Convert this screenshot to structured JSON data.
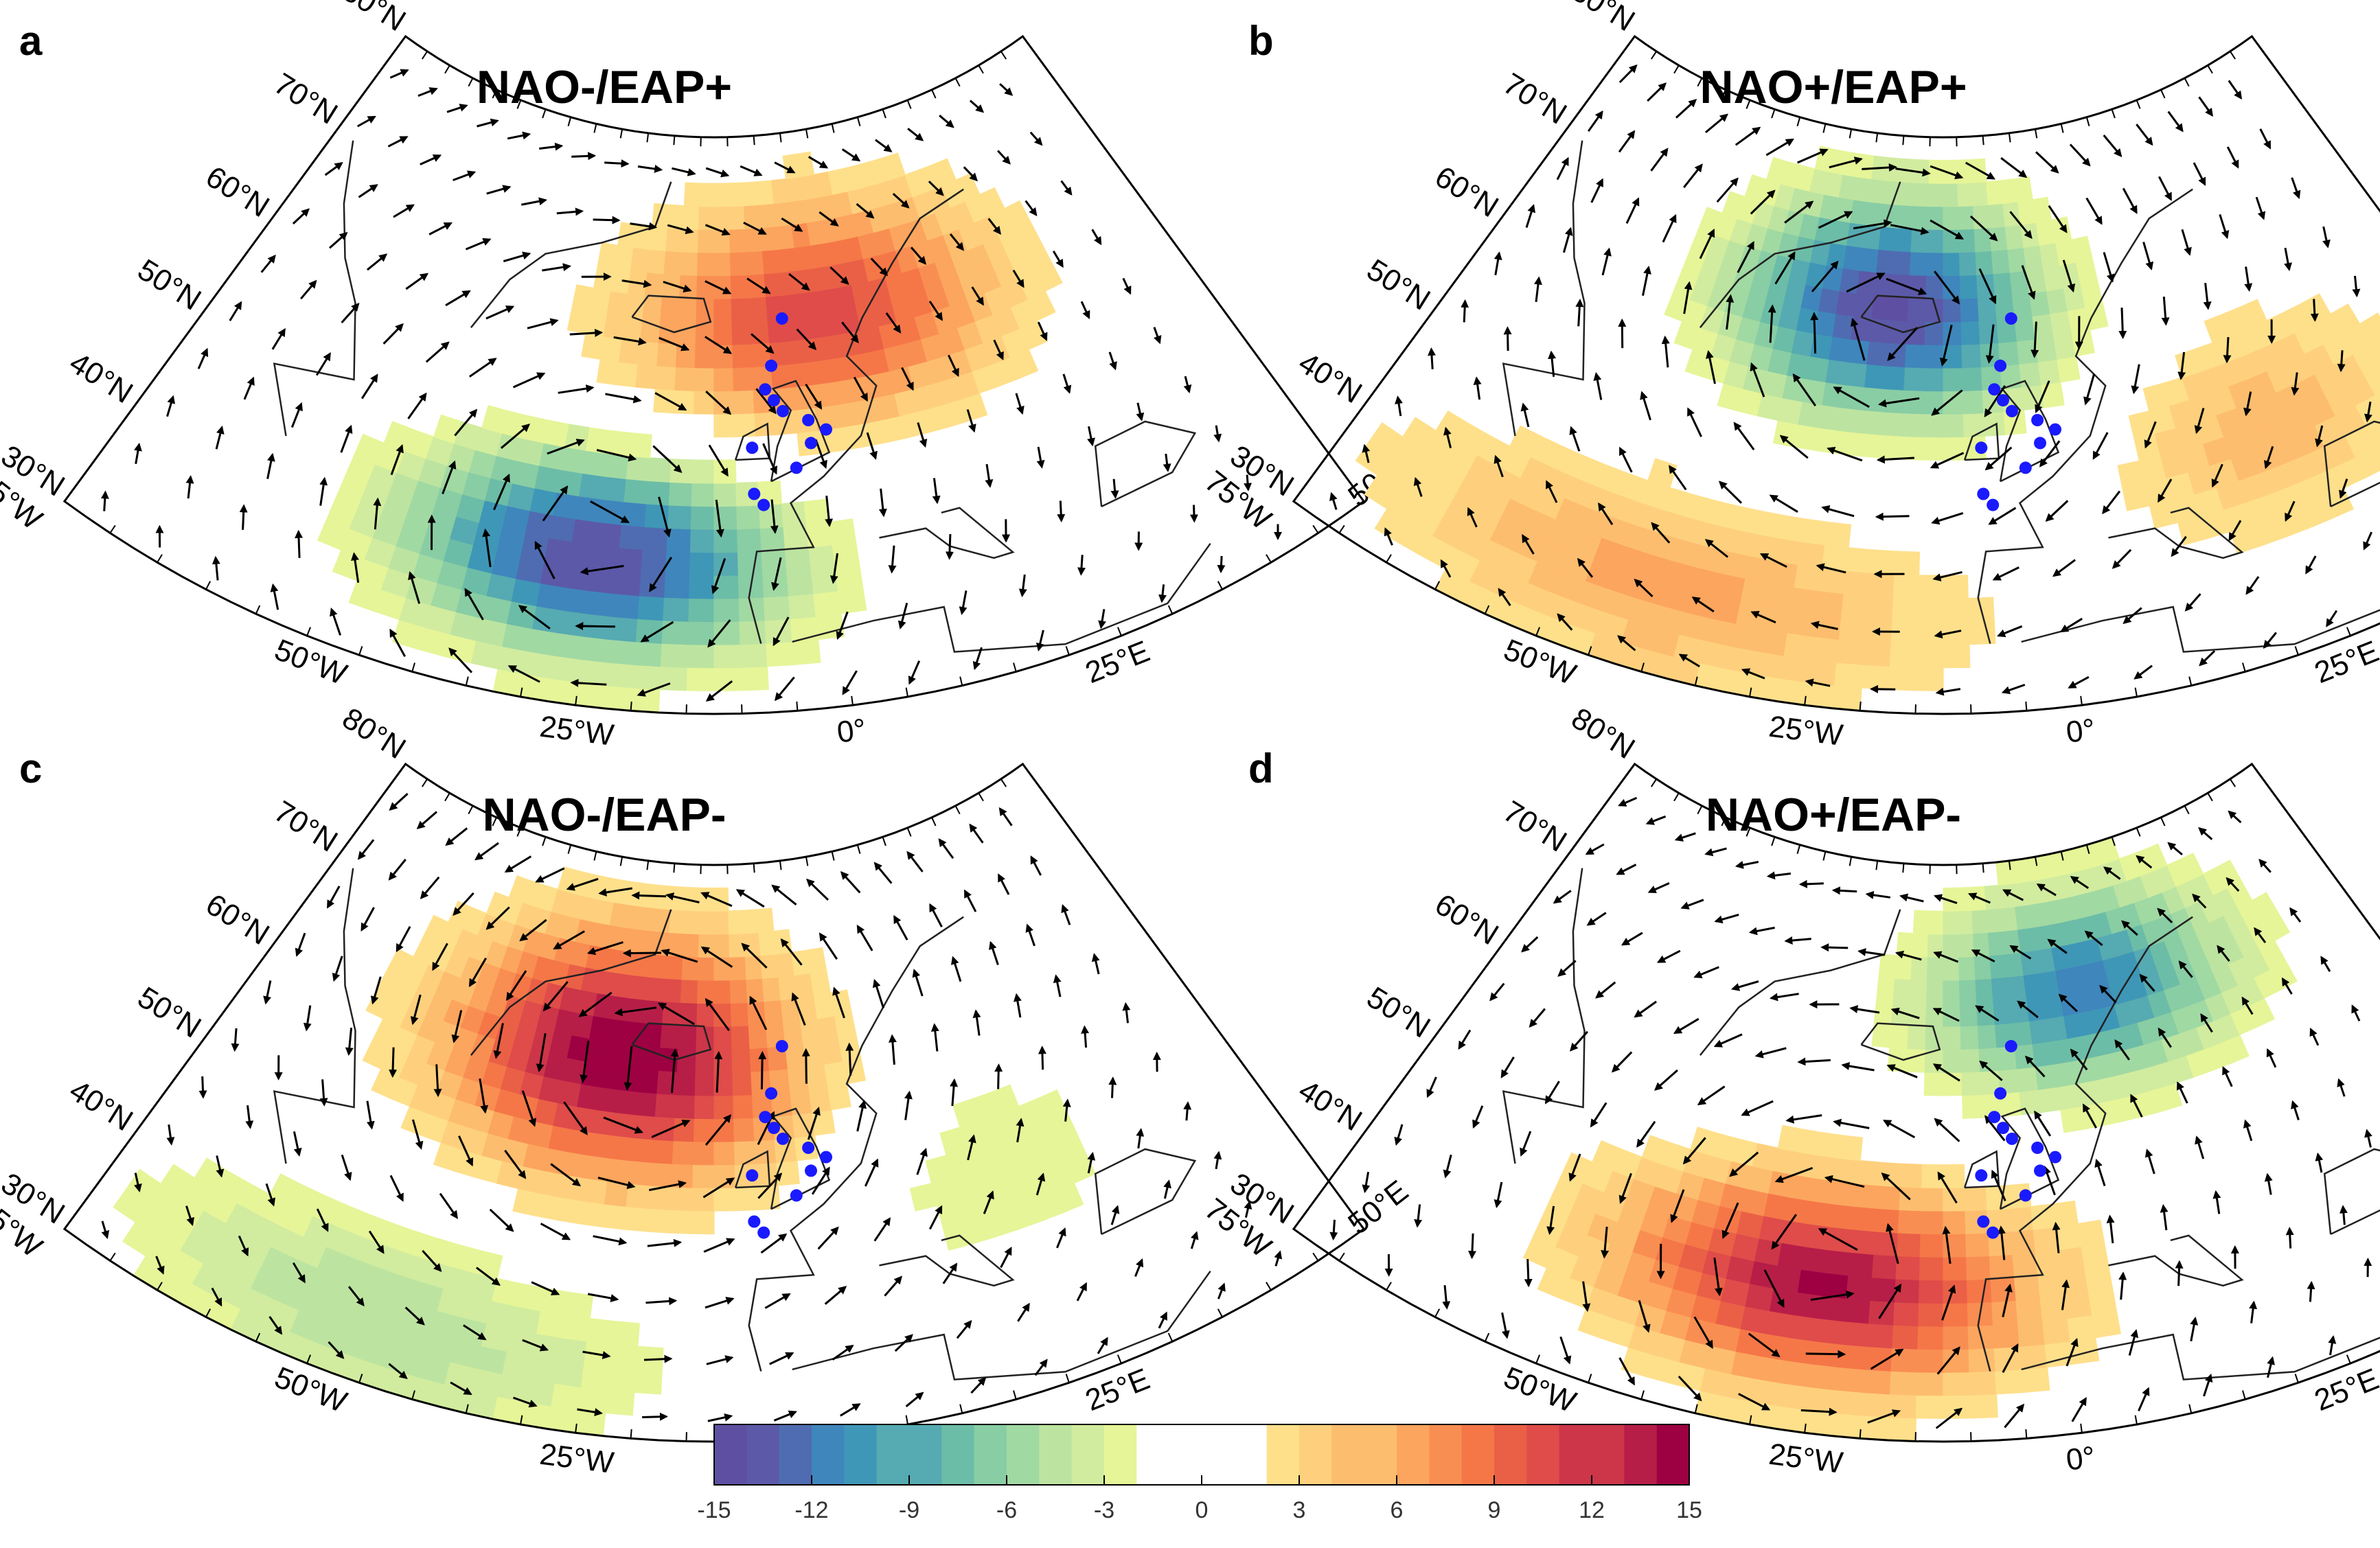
{
  "figure": {
    "panels": [
      {
        "letter": "a",
        "title": "NAO-/EAP+",
        "anomalies": [
          {
            "lon": 2,
            "lat": 64,
            "value": 11,
            "sx": 26,
            "sy": 10
          },
          {
            "lon": -25,
            "lat": 43,
            "value": -14,
            "sx": 20,
            "sy": 9
          }
        ],
        "circulation_center": {
          "lon": -25,
          "lat": 45,
          "sense": "cyclonic"
        }
      },
      {
        "letter": "b",
        "title": "NAO+/EAP+",
        "anomalies": [
          {
            "lon": -20,
            "lat": 65,
            "value": -14,
            "sx": 22,
            "sy": 10
          },
          {
            "lon": -40,
            "lat": 38,
            "value": 6,
            "sx": 30,
            "sy": 9
          },
          {
            "lon": 25,
            "lat": 50,
            "value": 5,
            "sx": 18,
            "sy": 10
          }
        ],
        "circulation_center": {
          "lon": -20,
          "lat": 63,
          "sense": "cyclonic"
        }
      },
      {
        "letter": "c",
        "title": "NAO-/EAP-",
        "anomalies": [
          {
            "lon": -25,
            "lat": 63,
            "value": 15,
            "sx": 24,
            "sy": 11
          },
          {
            "lon": -45,
            "lat": 36,
            "value": -5,
            "sx": 28,
            "sy": 9
          },
          {
            "lon": 20,
            "lat": 50,
            "value": -3,
            "sx": 18,
            "sy": 10
          }
        ],
        "circulation_center": {
          "lon": -22,
          "lat": 62,
          "sense": "anticyclonic"
        }
      },
      {
        "letter": "d",
        "title": "NAO+/EAP-",
        "anomalies": [
          {
            "lon": 8,
            "lat": 68,
            "value": -11,
            "sx": 24,
            "sy": 9
          },
          {
            "lon": -25,
            "lat": 43,
            "value": 14,
            "sx": 22,
            "sy": 9
          }
        ],
        "circulation_center": {
          "lon": -25,
          "lat": 45,
          "sense": "anticyclonic"
        }
      }
    ],
    "lat_labels": [
      "30°N",
      "40°N",
      "50°N",
      "60°N",
      "70°N",
      "80°N"
    ],
    "lon_labels": [
      "75°W",
      "50°W",
      "25°W",
      "0°",
      "25°E",
      "50°E"
    ],
    "map_extent": {
      "lon_min": -75,
      "lon_max": 50,
      "lat_min": 30,
      "lat_max": 80
    },
    "stations_markers": {
      "color": "#1a1aff",
      "count": 12
    },
    "colorbar": {
      "ticks": [
        "-15",
        "-12",
        "-9",
        "-6",
        "-3",
        "0",
        "3",
        "6",
        "9",
        "12",
        "15"
      ],
      "range": [
        -15,
        15
      ],
      "levels": 30,
      "neutral_band": [
        -2,
        2
      ],
      "colors": [
        "#5e4fa2",
        "#5c59a9",
        "#4f6cb2",
        "#3f86bc",
        "#3f97b7",
        "#56aab1",
        "#6cbda7",
        "#89cda4",
        "#a1d9a3",
        "#bce4a0",
        "#d1ec9f",
        "#e6f598",
        "#ffffff",
        "#fee08b",
        "#fed07d",
        "#fdbd6f",
        "#fca55e",
        "#f98e52",
        "#f57748",
        "#ea6046",
        "#df4c4a",
        "#cc3648",
        "#b61e48",
        "#9e0142"
      ]
    }
  }
}
